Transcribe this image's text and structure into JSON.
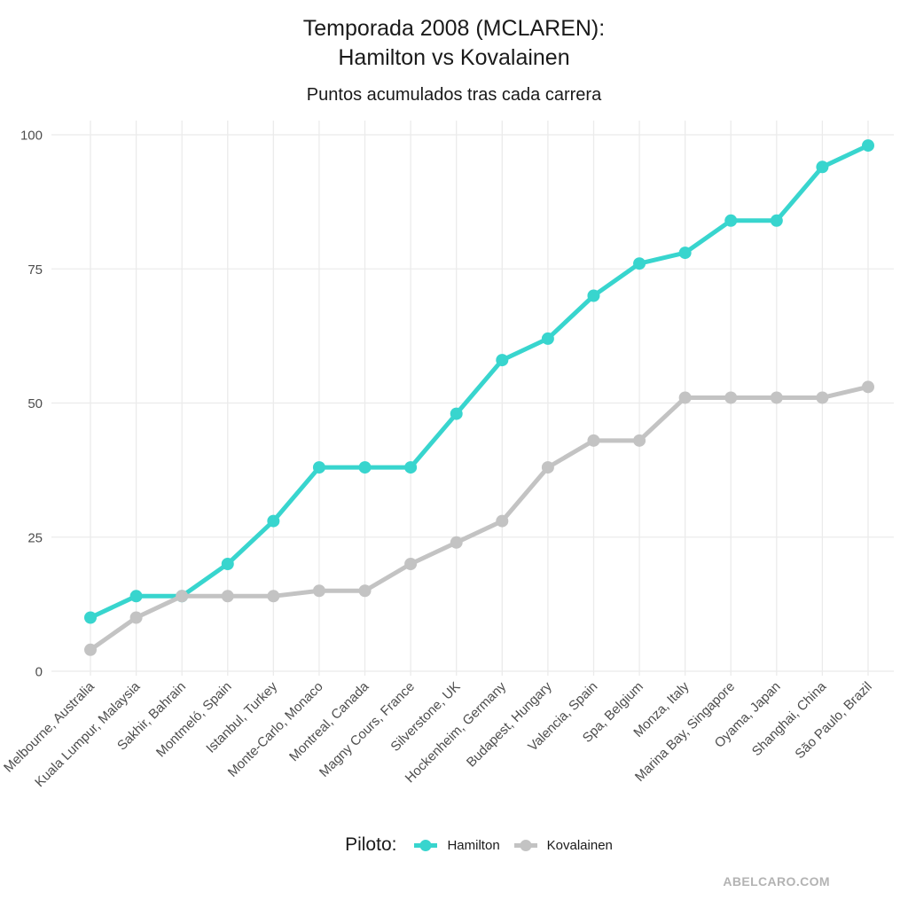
{
  "header": {
    "title_line1": "Temporada 2008 (MCLAREN):",
    "title_line2": "Hamilton vs Kovalainen",
    "subtitle": "Puntos acumulados tras cada carrera"
  },
  "legend": {
    "title": "Piloto:",
    "entries": [
      {
        "label": "Hamilton",
        "color": "#38D5CE"
      },
      {
        "label": "Kovalainen",
        "color": "#C3C3C3"
      }
    ]
  },
  "watermark": "ABELCARO.COM",
  "colors": {
    "hamilton": "#38D5CE",
    "kovalainen": "#C3C3C3",
    "gridline": "#EBEBEB",
    "axis_text": "#4D4D4D",
    "title_text": "#1A1A1A",
    "watermark_text": "#B3B3B3",
    "background": "#FFFFFF"
  },
  "chart_data": {
    "type": "line",
    "title": "Temporada 2008 (MCLAREN): Hamilton vs Kovalainen",
    "subtitle": "Puntos acumulados tras cada carrera",
    "xlabel": "",
    "ylabel": "",
    "yticks": [
      0,
      25,
      50,
      75,
      100
    ],
    "ylim": [
      0,
      100
    ],
    "grid": true,
    "legend_position": "bottom",
    "legend_title": "Piloto:",
    "categories": [
      "Melbourne, Australia",
      "Kuala Lumpur, Malaysia",
      "Sakhir, Bahrain",
      "Montmeló, Spain",
      "Istanbul, Turkey",
      "Monte-Carlo, Monaco",
      "Montreal, Canada",
      "Magny Cours, France",
      "Silverstone, UK",
      "Hockenheim, Germany",
      "Budapest, Hungary",
      "Valencia, Spain",
      "Spa, Belgium",
      "Monza, Italy",
      "Marina Bay, Singapore",
      "Oyama, Japan",
      "Shanghai, China",
      "São Paulo, Brazil"
    ],
    "series": [
      {
        "name": "Hamilton",
        "color": "#38D5CE",
        "values": [
          10,
          14,
          14,
          20,
          28,
          38,
          38,
          38,
          48,
          58,
          62,
          70,
          76,
          78,
          84,
          84,
          94,
          98
        ]
      },
      {
        "name": "Kovalainen",
        "color": "#C3C3C3",
        "values": [
          4,
          10,
          14,
          14,
          14,
          15,
          15,
          20,
          24,
          28,
          38,
          43,
          43,
          51,
          51,
          51,
          51,
          53
        ]
      }
    ]
  }
}
